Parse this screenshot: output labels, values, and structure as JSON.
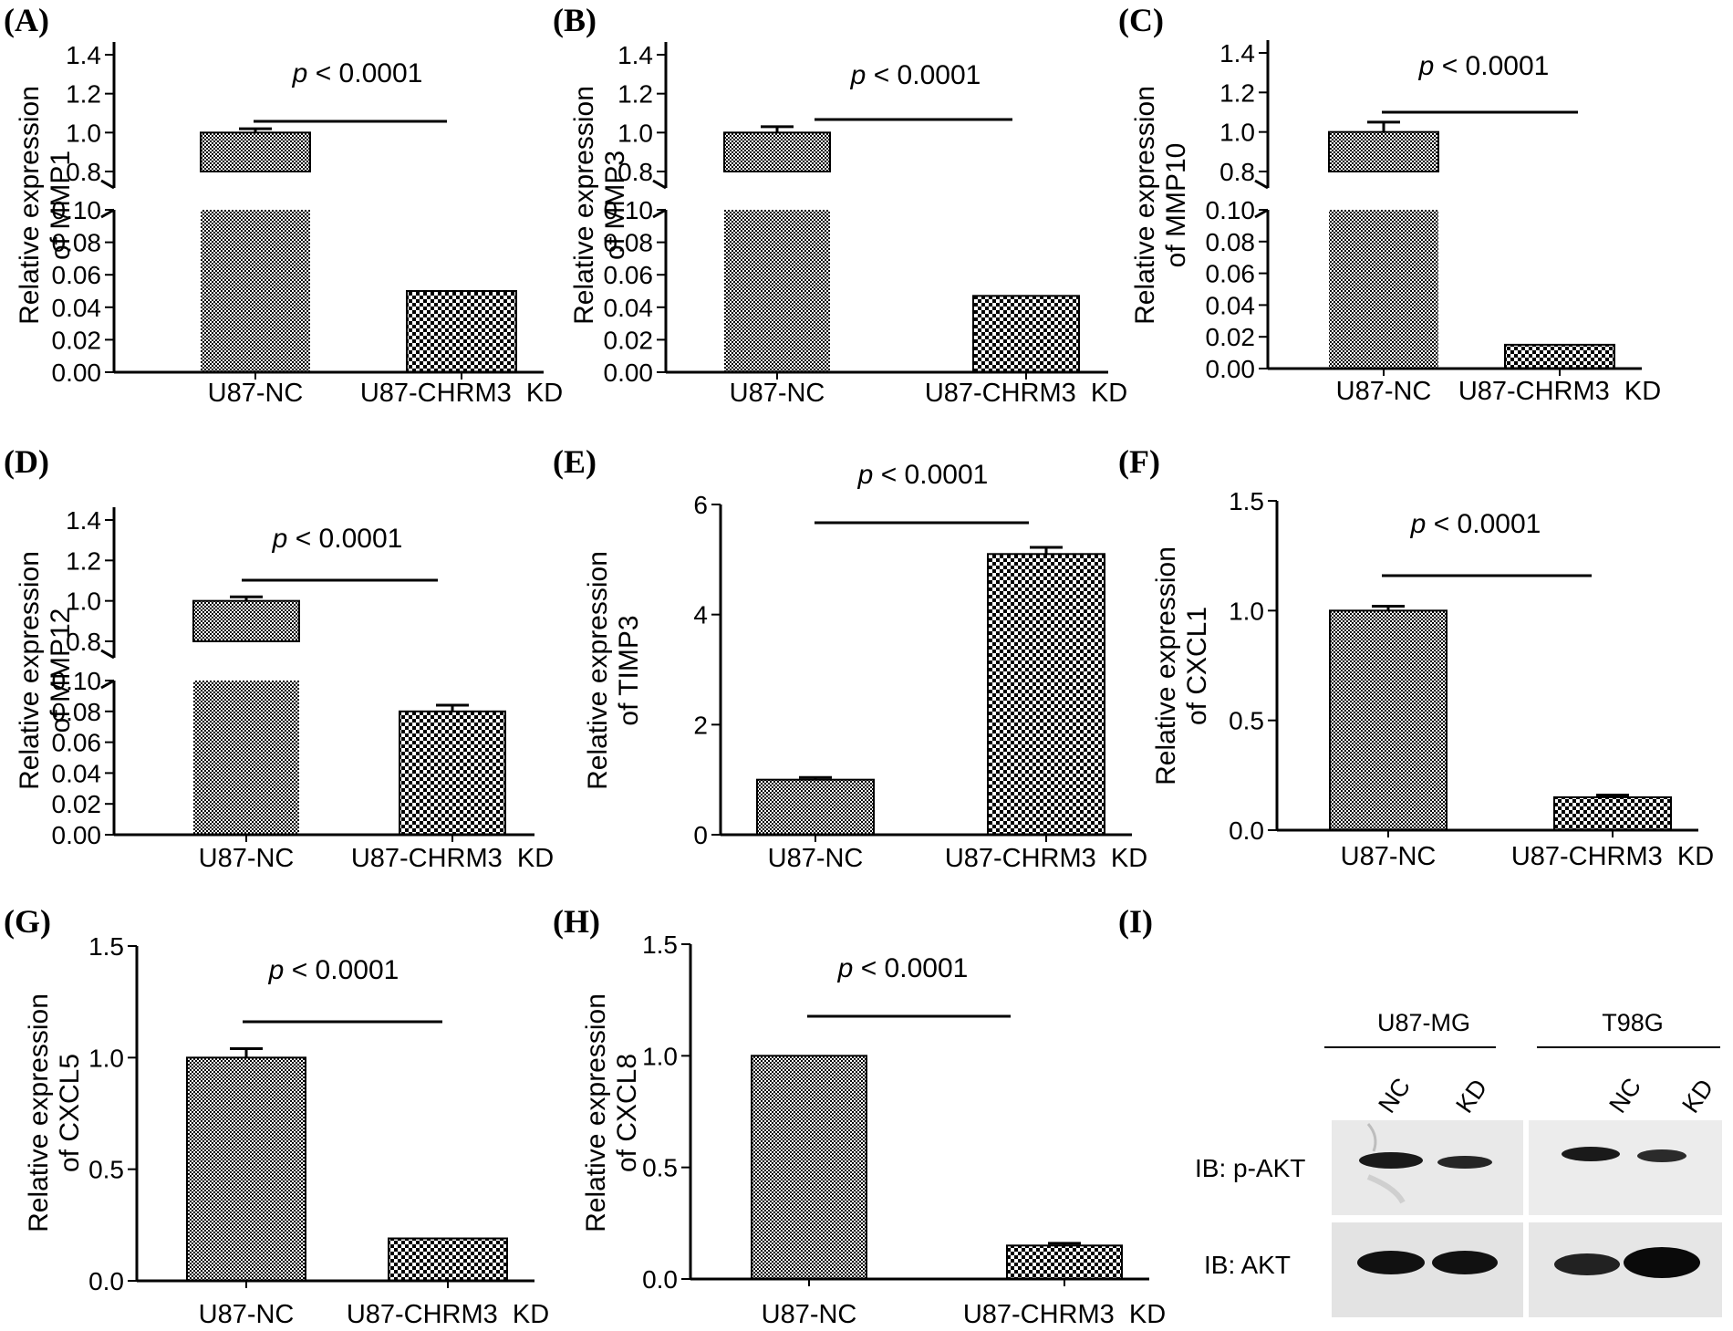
{
  "figure": {
    "panels": [
      "(A)",
      "(B)",
      "(C)",
      "(D)",
      "(E)",
      "(F)",
      "(G)",
      "(H)",
      "(I)"
    ]
  },
  "chart_data": [
    {
      "type": "bar",
      "panel": "(A)",
      "broken_axis": true,
      "categories": [
        "U87-NC",
        "U87-CHRM3  KD"
      ],
      "values": [
        1.0,
        0.05
      ],
      "errors": [
        0.02,
        0
      ],
      "ylabel_line1": "Relative expression",
      "ylabel_line2": "of MMP1",
      "lower_ylim": [
        0,
        0.1
      ],
      "lower_ticks": [
        "0.00",
        "0.02",
        "0.04",
        "0.06",
        "0.08",
        "0.10"
      ],
      "upper_ylim": [
        0.8,
        1.4
      ],
      "upper_ticks": [
        "0.8",
        "1.0",
        "1.2",
        "1.4"
      ],
      "annotation": {
        "italic": "p",
        "text": " < 0.0001"
      }
    },
    {
      "type": "bar",
      "panel": "(B)",
      "broken_axis": true,
      "categories": [
        "U87-NC",
        "U87-CHRM3  KD"
      ],
      "values": [
        1.0,
        0.047
      ],
      "errors": [
        0.03,
        0
      ],
      "ylabel_line1": "Relative expression",
      "ylabel_line2": "of MMP3",
      "lower_ylim": [
        0,
        0.1
      ],
      "lower_ticks": [
        "0.00",
        "0.02",
        "0.04",
        "0.06",
        "0.08",
        "0.10"
      ],
      "upper_ylim": [
        0.8,
        1.4
      ],
      "upper_ticks": [
        "0.8",
        "1.0",
        "1.2",
        "1.4"
      ],
      "annotation": {
        "italic": "p",
        "text": " < 0.0001"
      }
    },
    {
      "type": "bar",
      "panel": "(C)",
      "broken_axis": true,
      "categories": [
        "U87-NC",
        "U87-CHRM3  KD"
      ],
      "values": [
        1.0,
        0.015
      ],
      "errors": [
        0.05,
        0
      ],
      "ylabel_line1": "Relative expression",
      "ylabel_line2": "of MMP10",
      "lower_ylim": [
        0,
        0.1
      ],
      "lower_ticks": [
        "0.00",
        "0.02",
        "0.04",
        "0.06",
        "0.08",
        "0.10"
      ],
      "upper_ylim": [
        0.8,
        1.4
      ],
      "upper_ticks": [
        "0.8",
        "1.0",
        "1.2",
        "1.4"
      ],
      "annotation": {
        "italic": "p",
        "text": " < 0.0001"
      }
    },
    {
      "type": "bar",
      "panel": "(D)",
      "broken_axis": true,
      "categories": [
        "U87-NC",
        "U87-CHRM3  KD"
      ],
      "values": [
        1.0,
        0.08
      ],
      "errors": [
        0.02,
        0.004
      ],
      "ylabel_line1": "Relative expression",
      "ylabel_line2": "of MMP12",
      "lower_ylim": [
        0,
        0.1
      ],
      "lower_ticks": [
        "0.00",
        "0.02",
        "0.04",
        "0.06",
        "0.08",
        "0.10"
      ],
      "upper_ylim": [
        0.8,
        1.4
      ],
      "upper_ticks": [
        "0.8",
        "1.0",
        "1.2",
        "1.4"
      ],
      "annotation": {
        "italic": "p",
        "text": " < 0.0001"
      }
    },
    {
      "type": "bar",
      "panel": "(E)",
      "broken_axis": false,
      "categories": [
        "U87-NC",
        "U87-CHRM3  KD"
      ],
      "values": [
        1.0,
        5.1
      ],
      "errors": [
        0.04,
        0.12
      ],
      "ylabel_line1": "Relative expression",
      "ylabel_line2": "of TIMP3",
      "ylim": [
        0,
        6
      ],
      "ticks": [
        "0",
        "2",
        "4",
        "6"
      ],
      "annotation": {
        "italic": "p",
        "text": " < 0.0001"
      }
    },
    {
      "type": "bar",
      "panel": "(F)",
      "broken_axis": false,
      "categories": [
        "U87-NC",
        "U87-CHRM3  KD"
      ],
      "values": [
        1.0,
        0.15
      ],
      "errors": [
        0.02,
        0.01
      ],
      "ylabel_line1": "Relative expression",
      "ylabel_line2": "of CXCL1",
      "ylim": [
        0,
        1.5
      ],
      "ticks": [
        "0.0",
        "0.5",
        "1.0",
        "1.5"
      ],
      "annotation": {
        "italic": "p",
        "text": " < 0.0001"
      }
    },
    {
      "type": "bar",
      "panel": "(G)",
      "broken_axis": false,
      "categories": [
        "U87-NC",
        "U87-CHRM3  KD"
      ],
      "values": [
        1.0,
        0.19
      ],
      "errors": [
        0.04,
        0
      ],
      "ylabel_line1": "Relative expression",
      "ylabel_line2": "of CXCL5",
      "ylim": [
        0,
        1.5
      ],
      "ticks": [
        "0.0",
        "0.5",
        "1.0",
        "1.5"
      ],
      "annotation": {
        "italic": "p",
        "text": " < 0.0001"
      }
    },
    {
      "type": "bar",
      "panel": "(H)",
      "broken_axis": false,
      "categories": [
        "U87-NC",
        "U87-CHRM3  KD"
      ],
      "values": [
        1.0,
        0.15
      ],
      "errors": [
        0,
        0.01
      ],
      "ylabel_line1": "Relative expression",
      "ylabel_line2": "of CXCL8",
      "ylim": [
        0,
        1.5
      ],
      "ticks": [
        "0.0",
        "0.5",
        "1.0",
        "1.5"
      ],
      "annotation": {
        "italic": "p",
        "text": " < 0.0001"
      }
    }
  ],
  "blot": {
    "panel": "(I)",
    "groups": [
      "U87-MG",
      "T98G"
    ],
    "lanes": [
      "NC",
      "KD",
      "NC",
      "KD"
    ],
    "rows": [
      "IB: p-AKT",
      "IB: AKT"
    ]
  }
}
